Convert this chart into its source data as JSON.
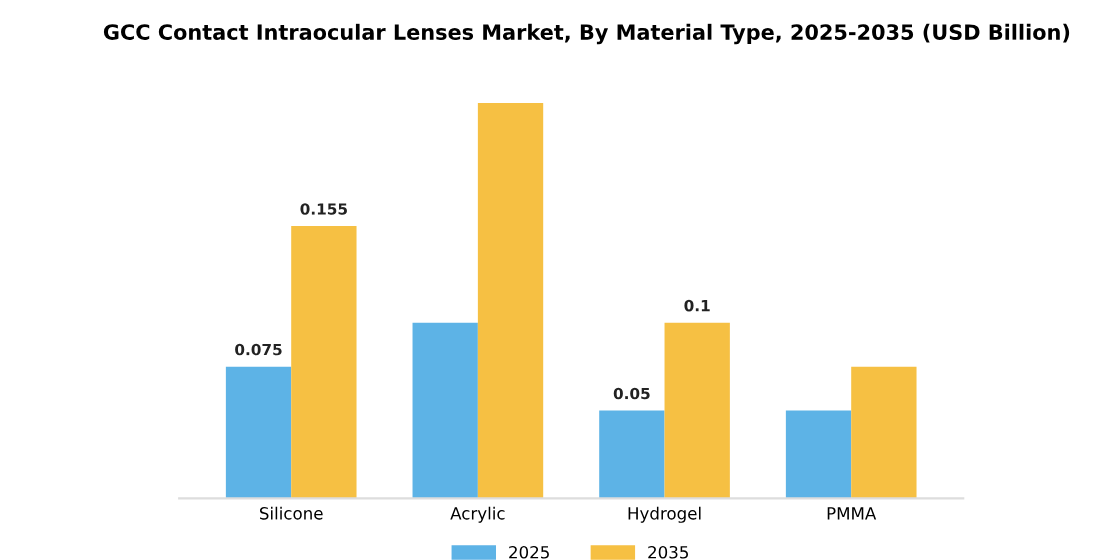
{
  "chart_data": {
    "type": "bar",
    "title": "GCC Contact Intraocular Lenses Market, By Material Type, 2025-2035 (USD Billion)",
    "categories": [
      "Silicone",
      "Acrylic",
      "Hydrogel",
      "PMMA"
    ],
    "series": [
      {
        "name": "2025",
        "color": "#5db3e6",
        "values": [
          0.075,
          0.1,
          0.05,
          0.05
        ],
        "value_labels": [
          "0.075",
          null,
          "0.05",
          null
        ]
      },
      {
        "name": "2035",
        "color": "#f6c043",
        "values": [
          0.155,
          0.225,
          0.1,
          0.075
        ],
        "value_labels": [
          "0.155",
          null,
          "0.1",
          null
        ]
      }
    ],
    "legend": "bottom",
    "grid": false
  }
}
